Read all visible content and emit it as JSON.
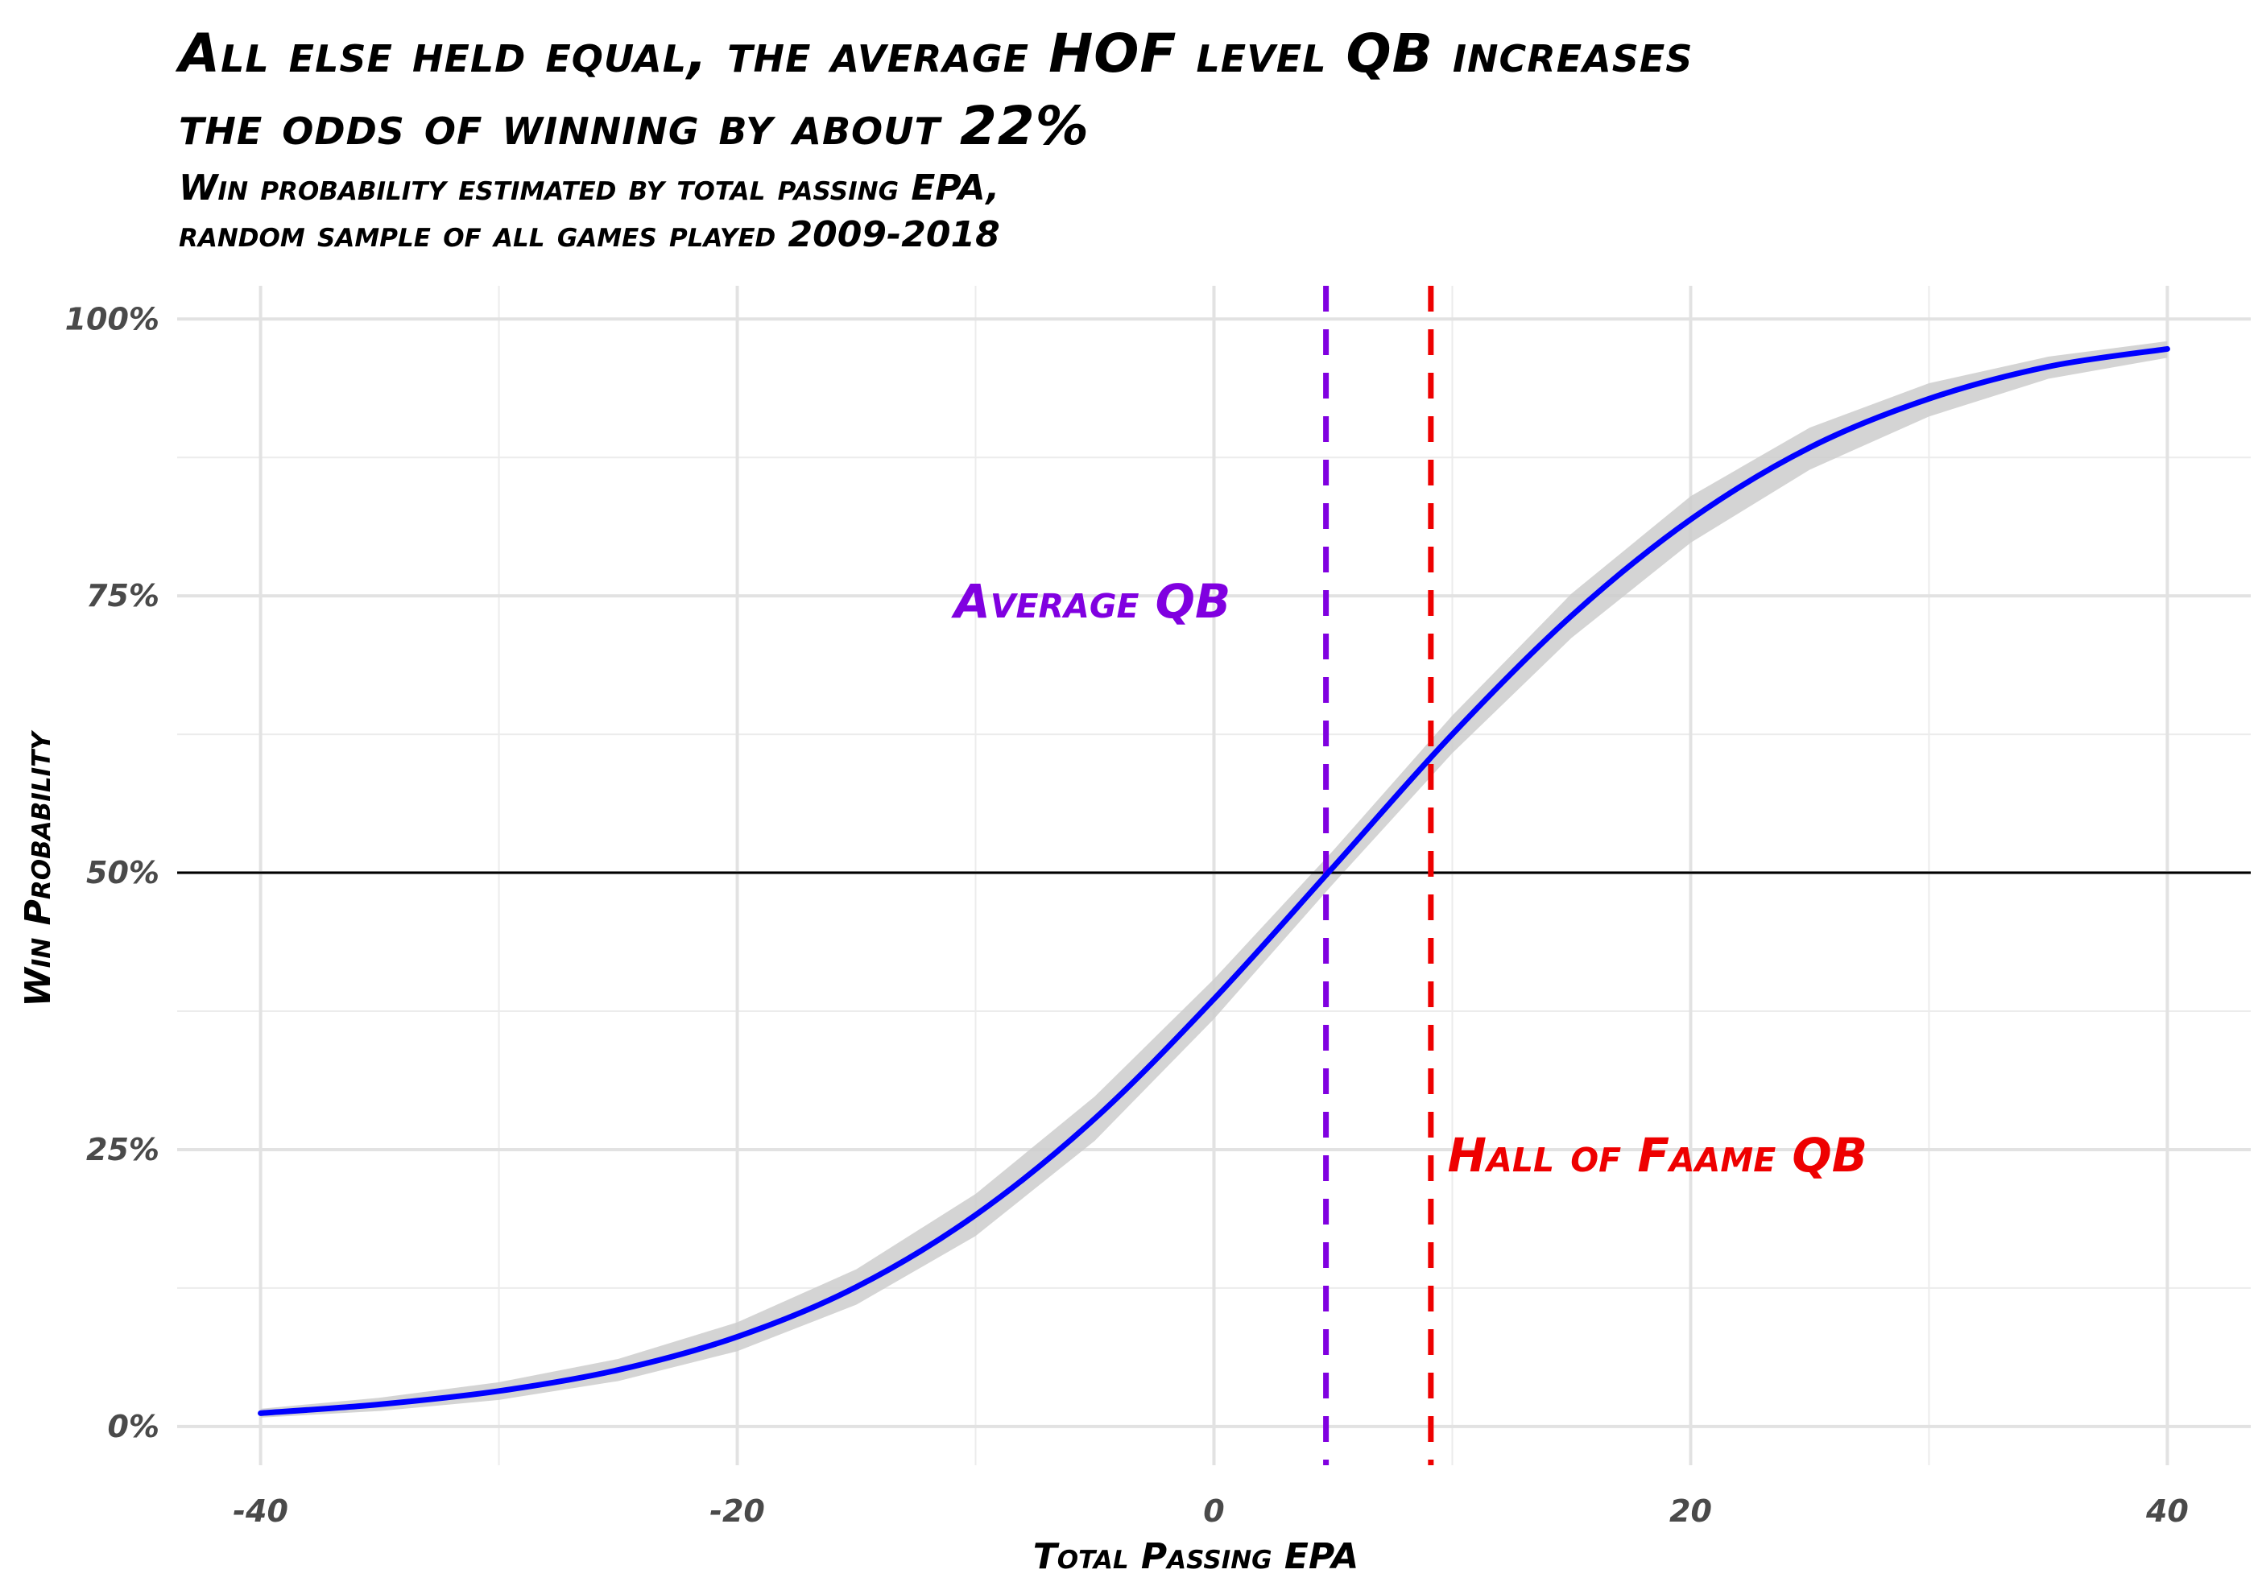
{
  "chart_data": {
    "type": "line",
    "title_lines": [
      "All else held equal, the average HOF level QB increases",
      "the odds of winning by about 22%"
    ],
    "subtitle_lines": [
      "Win probability estimated by total passing EPA,",
      "random sample of all games played 2009-2018"
    ],
    "xlabel": "Total Passing EPA",
    "ylabel": "Win Probability",
    "xlim": [
      -43.5,
      43.5
    ],
    "ylim": [
      -0.035,
      1.03
    ],
    "x_ticks": [
      -40,
      -20,
      0,
      20,
      40
    ],
    "x_tick_labels": [
      "-40",
      "-20",
      "0",
      "20",
      "40"
    ],
    "y_ticks": [
      0,
      0.25,
      0.5,
      0.75,
      1.0
    ],
    "y_tick_labels": [
      "0%",
      "25%",
      "50%",
      "75%",
      "100%"
    ],
    "grid": true,
    "reference_lines": [
      {
        "orientation": "horizontal",
        "value": 0.5,
        "color": "#000000",
        "style": "solid"
      },
      {
        "orientation": "vertical",
        "value": 4.7,
        "color": "#8000e0",
        "style": "dashed",
        "label": "Average QB"
      },
      {
        "orientation": "vertical",
        "value": 9.1,
        "color": "#ee0000",
        "style": "dashed",
        "label": "Hall of Faame QB"
      }
    ],
    "annotations": [
      {
        "text": "Average QB",
        "x": 0.7,
        "y": 0.745,
        "color": "#8000e0",
        "anchor": "end"
      },
      {
        "text": "Hall of Faame QB",
        "x": 9.8,
        "y": 0.245,
        "color": "#ee0000",
        "anchor": "start"
      }
    ],
    "series": [
      {
        "color": "#0000ff",
        "ribbon_color": "#cccccc",
        "x": [
          -40,
          -35,
          -30,
          -25,
          -20,
          -15,
          -10,
          -5,
          0,
          5,
          10,
          15,
          20,
          25,
          30,
          35,
          40
        ],
        "y": [
          0.012,
          0.02,
          0.032,
          0.051,
          0.081,
          0.126,
          0.191,
          0.278,
          0.386,
          0.505,
          0.625,
          0.732,
          0.819,
          0.884,
          0.928,
          0.957,
          0.973
        ],
        "ribbon_lower": [
          0.008,
          0.014,
          0.024,
          0.041,
          0.068,
          0.11,
          0.172,
          0.258,
          0.368,
          0.49,
          0.608,
          0.712,
          0.798,
          0.864,
          0.912,
          0.946,
          0.965
        ],
        "ribbon_upper": [
          0.016,
          0.026,
          0.04,
          0.061,
          0.094,
          0.142,
          0.21,
          0.298,
          0.404,
          0.52,
          0.642,
          0.752,
          0.84,
          0.902,
          0.942,
          0.966,
          0.98
        ]
      }
    ]
  }
}
